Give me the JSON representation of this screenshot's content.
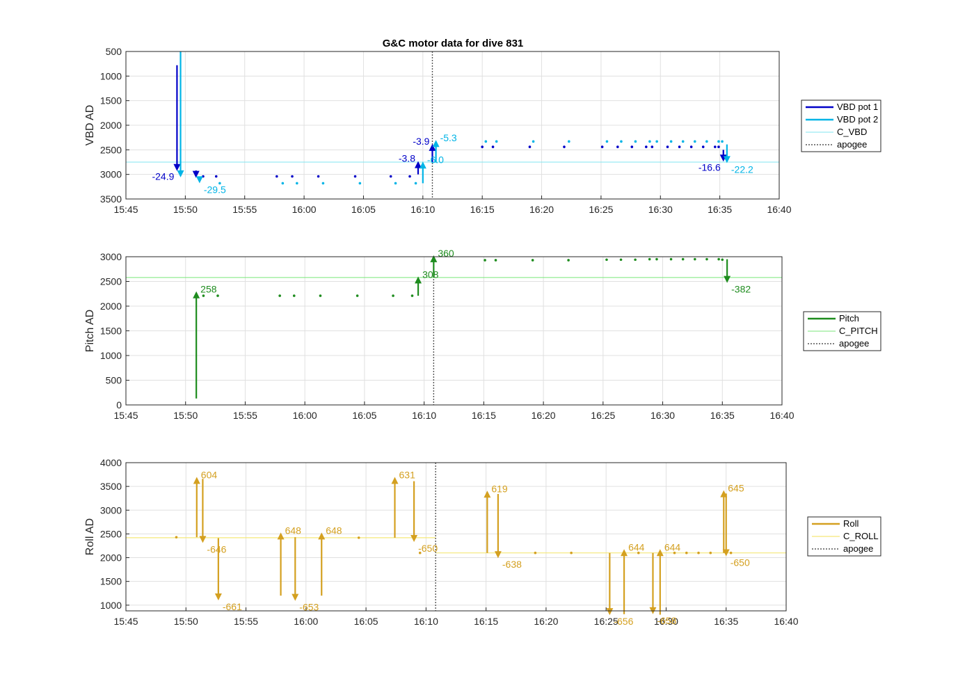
{
  "title": "G&C motor data for dive 831",
  "colors": {
    "vbd1": "#0000c8",
    "vbd2": "#00b4e6",
    "cvbd": "#80e6f0",
    "pitch": "#1e8c1e",
    "cpitch": "#78e678",
    "roll": "#d4a020",
    "croll": "#f5e878",
    "apogee": "#555555",
    "grid": "#e0e0e0"
  },
  "chart_data": [
    {
      "type": "line",
      "ylabel": "VBD AD",
      "xlabel": "",
      "x_ticks": [
        "15:45",
        "15:50",
        "15:55",
        "16:00",
        "16:05",
        "16:10",
        "16:15",
        "16:20",
        "16:25",
        "16:30",
        "16:35",
        "16:40"
      ],
      "y_ticks": [
        "500",
        "1000",
        "1500",
        "2000",
        "2500",
        "3000",
        "3500"
      ],
      "xlim": [
        0,
        55
      ],
      "ylim": [
        500,
        3500
      ],
      "y_reversed": true,
      "grid": true,
      "apogee_x": 25.8,
      "ref_line": {
        "name": "C_VBD",
        "y": 2750
      },
      "legend": [
        "VBD pot 1",
        "VBD pot 2",
        "C_VBD",
        "apogee"
      ],
      "series": [
        {
          "name": "VBD pot 1",
          "color_key": "vbd1",
          "arrows": [
            {
              "x": 4.3,
              "y0": 780,
              "y1": 2930,
              "label": "-24.9",
              "side": "left"
            },
            {
              "x": 5.9,
              "y0": 2920,
              "y1": 3070,
              "label": "",
              "side": "right"
            },
            {
              "x": 24.6,
              "y0": 3000,
              "y1": 2730,
              "label": "-3.8",
              "side": "left"
            },
            {
              "x": 25.8,
              "y0": 2750,
              "y1": 2380,
              "label": "-3.9",
              "side": "left"
            },
            {
              "x": 50.3,
              "y0": 2500,
              "y1": 2740,
              "label": "-16.6",
              "side": "left"
            }
          ],
          "dots": [
            {
              "x": 6.5,
              "y": 3040
            },
            {
              "x": 7.6,
              "y": 3040
            },
            {
              "x": 12.7,
              "y": 3040
            },
            {
              "x": 14.0,
              "y": 3040
            },
            {
              "x": 16.2,
              "y": 3040
            },
            {
              "x": 19.3,
              "y": 3040
            },
            {
              "x": 22.3,
              "y": 3040
            },
            {
              "x": 23.9,
              "y": 3040
            },
            {
              "x": 30.0,
              "y": 2440
            },
            {
              "x": 30.9,
              "y": 2440
            },
            {
              "x": 34.0,
              "y": 2440
            },
            {
              "x": 36.9,
              "y": 2440
            },
            {
              "x": 40.1,
              "y": 2440
            },
            {
              "x": 41.4,
              "y": 2440
            },
            {
              "x": 42.6,
              "y": 2440
            },
            {
              "x": 43.8,
              "y": 2440
            },
            {
              "x": 44.3,
              "y": 2440
            },
            {
              "x": 45.6,
              "y": 2440
            },
            {
              "x": 46.6,
              "y": 2440
            },
            {
              "x": 47.6,
              "y": 2440
            },
            {
              "x": 48.6,
              "y": 2440
            },
            {
              "x": 49.6,
              "y": 2440
            },
            {
              "x": 49.9,
              "y": 2440
            }
          ]
        },
        {
          "name": "VBD pot 2",
          "color_key": "vbd2",
          "arrows": [
            {
              "x": 4.6,
              "y0": 500,
              "y1": 3060,
              "label": "",
              "side": "right"
            },
            {
              "x": 6.2,
              "y0": 3050,
              "y1": 3180,
              "label": "-29.5",
              "side": "right"
            },
            {
              "x": 25.0,
              "y0": 3180,
              "y1": 2740,
              "label": "-6.0",
              "side": "right"
            },
            {
              "x": 26.1,
              "y0": 2760,
              "y1": 2300,
              "label": "-5.3",
              "side": "right"
            },
            {
              "x": 50.6,
              "y0": 2390,
              "y1": 2770,
              "label": "-22.2",
              "side": "right"
            }
          ],
          "dots": [
            {
              "x": 7.9,
              "y": 3180
            },
            {
              "x": 13.2,
              "y": 3180
            },
            {
              "x": 14.4,
              "y": 3180
            },
            {
              "x": 16.6,
              "y": 3180
            },
            {
              "x": 19.7,
              "y": 3180
            },
            {
              "x": 22.7,
              "y": 3180
            },
            {
              "x": 24.4,
              "y": 3180
            },
            {
              "x": 30.3,
              "y": 2330
            },
            {
              "x": 31.2,
              "y": 2330
            },
            {
              "x": 34.3,
              "y": 2330
            },
            {
              "x": 37.3,
              "y": 2330
            },
            {
              "x": 40.5,
              "y": 2330
            },
            {
              "x": 41.7,
              "y": 2330
            },
            {
              "x": 42.9,
              "y": 2330
            },
            {
              "x": 44.1,
              "y": 2330
            },
            {
              "x": 44.7,
              "y": 2330
            },
            {
              "x": 45.9,
              "y": 2330
            },
            {
              "x": 46.9,
              "y": 2330
            },
            {
              "x": 47.9,
              "y": 2330
            },
            {
              "x": 48.9,
              "y": 2330
            },
            {
              "x": 49.9,
              "y": 2330
            },
            {
              "x": 50.2,
              "y": 2330
            }
          ]
        }
      ]
    },
    {
      "type": "line",
      "ylabel": "Pitch AD",
      "xlabel": "",
      "x_ticks": [
        "15:45",
        "15:50",
        "15:55",
        "16:00",
        "16:05",
        "16:10",
        "16:15",
        "16:20",
        "16:25",
        "16:30",
        "16:35",
        "16:40"
      ],
      "y_ticks": [
        "0",
        "500",
        "1000",
        "1500",
        "2000",
        "2500",
        "3000"
      ],
      "xlim": [
        0,
        55
      ],
      "ylim": [
        0,
        3000
      ],
      "y_reversed": false,
      "grid": true,
      "apogee_x": 25.8,
      "ref_line": {
        "name": "C_PITCH",
        "y": 2580
      },
      "legend": [
        "Pitch",
        "C_PITCH",
        "apogee"
      ],
      "series": [
        {
          "name": "Pitch",
          "color_key": "pitch",
          "arrows": [
            {
              "x": 5.9,
              "y0": 130,
              "y1": 2300,
              "label": "258",
              "side": "right"
            },
            {
              "x": 24.5,
              "y0": 2210,
              "y1": 2600,
              "label": "308",
              "side": "right"
            },
            {
              "x": 25.8,
              "y0": 2580,
              "y1": 3030,
              "label": "360",
              "side": "right"
            },
            {
              "x": 50.4,
              "y0": 2950,
              "y1": 2470,
              "label": "-382",
              "side": "right"
            }
          ],
          "dots": [
            {
              "x": 6.5,
              "y": 2210
            },
            {
              "x": 7.7,
              "y": 2210
            },
            {
              "x": 12.9,
              "y": 2210
            },
            {
              "x": 14.1,
              "y": 2210
            },
            {
              "x": 16.3,
              "y": 2210
            },
            {
              "x": 19.4,
              "y": 2210
            },
            {
              "x": 22.4,
              "y": 2210
            },
            {
              "x": 24.0,
              "y": 2210
            },
            {
              "x": 30.1,
              "y": 2930
            },
            {
              "x": 31.0,
              "y": 2930
            },
            {
              "x": 34.1,
              "y": 2930
            },
            {
              "x": 37.1,
              "y": 2930
            },
            {
              "x": 40.3,
              "y": 2940
            },
            {
              "x": 41.5,
              "y": 2940
            },
            {
              "x": 42.7,
              "y": 2940
            },
            {
              "x": 43.9,
              "y": 2950
            },
            {
              "x": 44.5,
              "y": 2950
            },
            {
              "x": 45.7,
              "y": 2950
            },
            {
              "x": 46.7,
              "y": 2950
            },
            {
              "x": 47.7,
              "y": 2950
            },
            {
              "x": 48.7,
              "y": 2950
            },
            {
              "x": 49.7,
              "y": 2950
            },
            {
              "x": 50.0,
              "y": 2940
            }
          ]
        }
      ]
    },
    {
      "type": "line",
      "ylabel": "Roll AD",
      "xlabel": "",
      "x_ticks": [
        "15:45",
        "15:50",
        "15:55",
        "16:00",
        "16:05",
        "16:10",
        "16:15",
        "16:20",
        "16:25",
        "16:30",
        "16:35",
        "16:40"
      ],
      "y_ticks": [
        "1000",
        "1500",
        "2000",
        "2500",
        "3000",
        "3500",
        "4000"
      ],
      "xlim": [
        0,
        55
      ],
      "ylim": [
        880,
        4000
      ],
      "y_reversed": false,
      "grid": true,
      "apogee_x": 25.8,
      "ref_line_segments": [
        {
          "name": "C_ROLL",
          "y": 2420,
          "x0": 0,
          "x1": 25.8
        },
        {
          "name": "C_ROLL",
          "y": 2100,
          "x0": 25.8,
          "x1": 55
        }
      ],
      "legend": [
        "Roll",
        "C_ROLL",
        "apogee"
      ],
      "series": [
        {
          "name": "Roll",
          "color_key": "roll",
          "arrows": [
            {
              "x": 5.9,
              "y0": 2430,
              "y1": 3700,
              "label": "604",
              "side": "right"
            },
            {
              "x": 6.4,
              "y0": 3660,
              "y1": 2310,
              "label": "-646",
              "side": "right"
            },
            {
              "x": 7.7,
              "y0": 2410,
              "y1": 1100,
              "label": "-661",
              "side": "right"
            },
            {
              "x": 12.9,
              "y0": 1200,
              "y1": 2530,
              "label": "648",
              "side": "right"
            },
            {
              "x": 14.1,
              "y0": 2430,
              "y1": 1090,
              "label": "-653",
              "side": "right"
            },
            {
              "x": 16.3,
              "y0": 1200,
              "y1": 2530,
              "label": "648",
              "side": "right"
            },
            {
              "x": 22.4,
              "y0": 2420,
              "y1": 3700,
              "label": "631",
              "side": "right"
            },
            {
              "x": 24.0,
              "y0": 3610,
              "y1": 2330,
              "label": "-650",
              "side": "right"
            },
            {
              "x": 30.1,
              "y0": 2100,
              "y1": 3410,
              "label": "619",
              "side": "right"
            },
            {
              "x": 31.0,
              "y0": 3340,
              "y1": 1990,
              "label": "-638",
              "side": "right"
            },
            {
              "x": 40.3,
              "y0": 2100,
              "y1": 790,
              "label": "-656",
              "side": "right"
            },
            {
              "x": 41.5,
              "y0": 810,
              "y1": 2180,
              "label": "644",
              "side": "right"
            },
            {
              "x": 43.9,
              "y0": 2100,
              "y1": 810,
              "label": "-658",
              "side": "right"
            },
            {
              "x": 44.5,
              "y0": 800,
              "y1": 2180,
              "label": "644",
              "side": "right"
            },
            {
              "x": 49.8,
              "y0": 2100,
              "y1": 3420,
              "label": "645",
              "side": "right"
            },
            {
              "x": 50.0,
              "y0": 3350,
              "y1": 2030,
              "label": "-650",
              "side": "right"
            }
          ],
          "dots": [
            {
              "x": 4.2,
              "y": 2430
            },
            {
              "x": 19.4,
              "y": 2420
            },
            {
              "x": 24.5,
              "y": 2100
            },
            {
              "x": 34.1,
              "y": 2100
            },
            {
              "x": 37.1,
              "y": 2100
            },
            {
              "x": 42.7,
              "y": 2100
            },
            {
              "x": 45.7,
              "y": 2100
            },
            {
              "x": 46.7,
              "y": 2100
            },
            {
              "x": 47.7,
              "y": 2100
            },
            {
              "x": 48.7,
              "y": 2100
            },
            {
              "x": 50.4,
              "y": 2100
            }
          ]
        }
      ]
    }
  ]
}
